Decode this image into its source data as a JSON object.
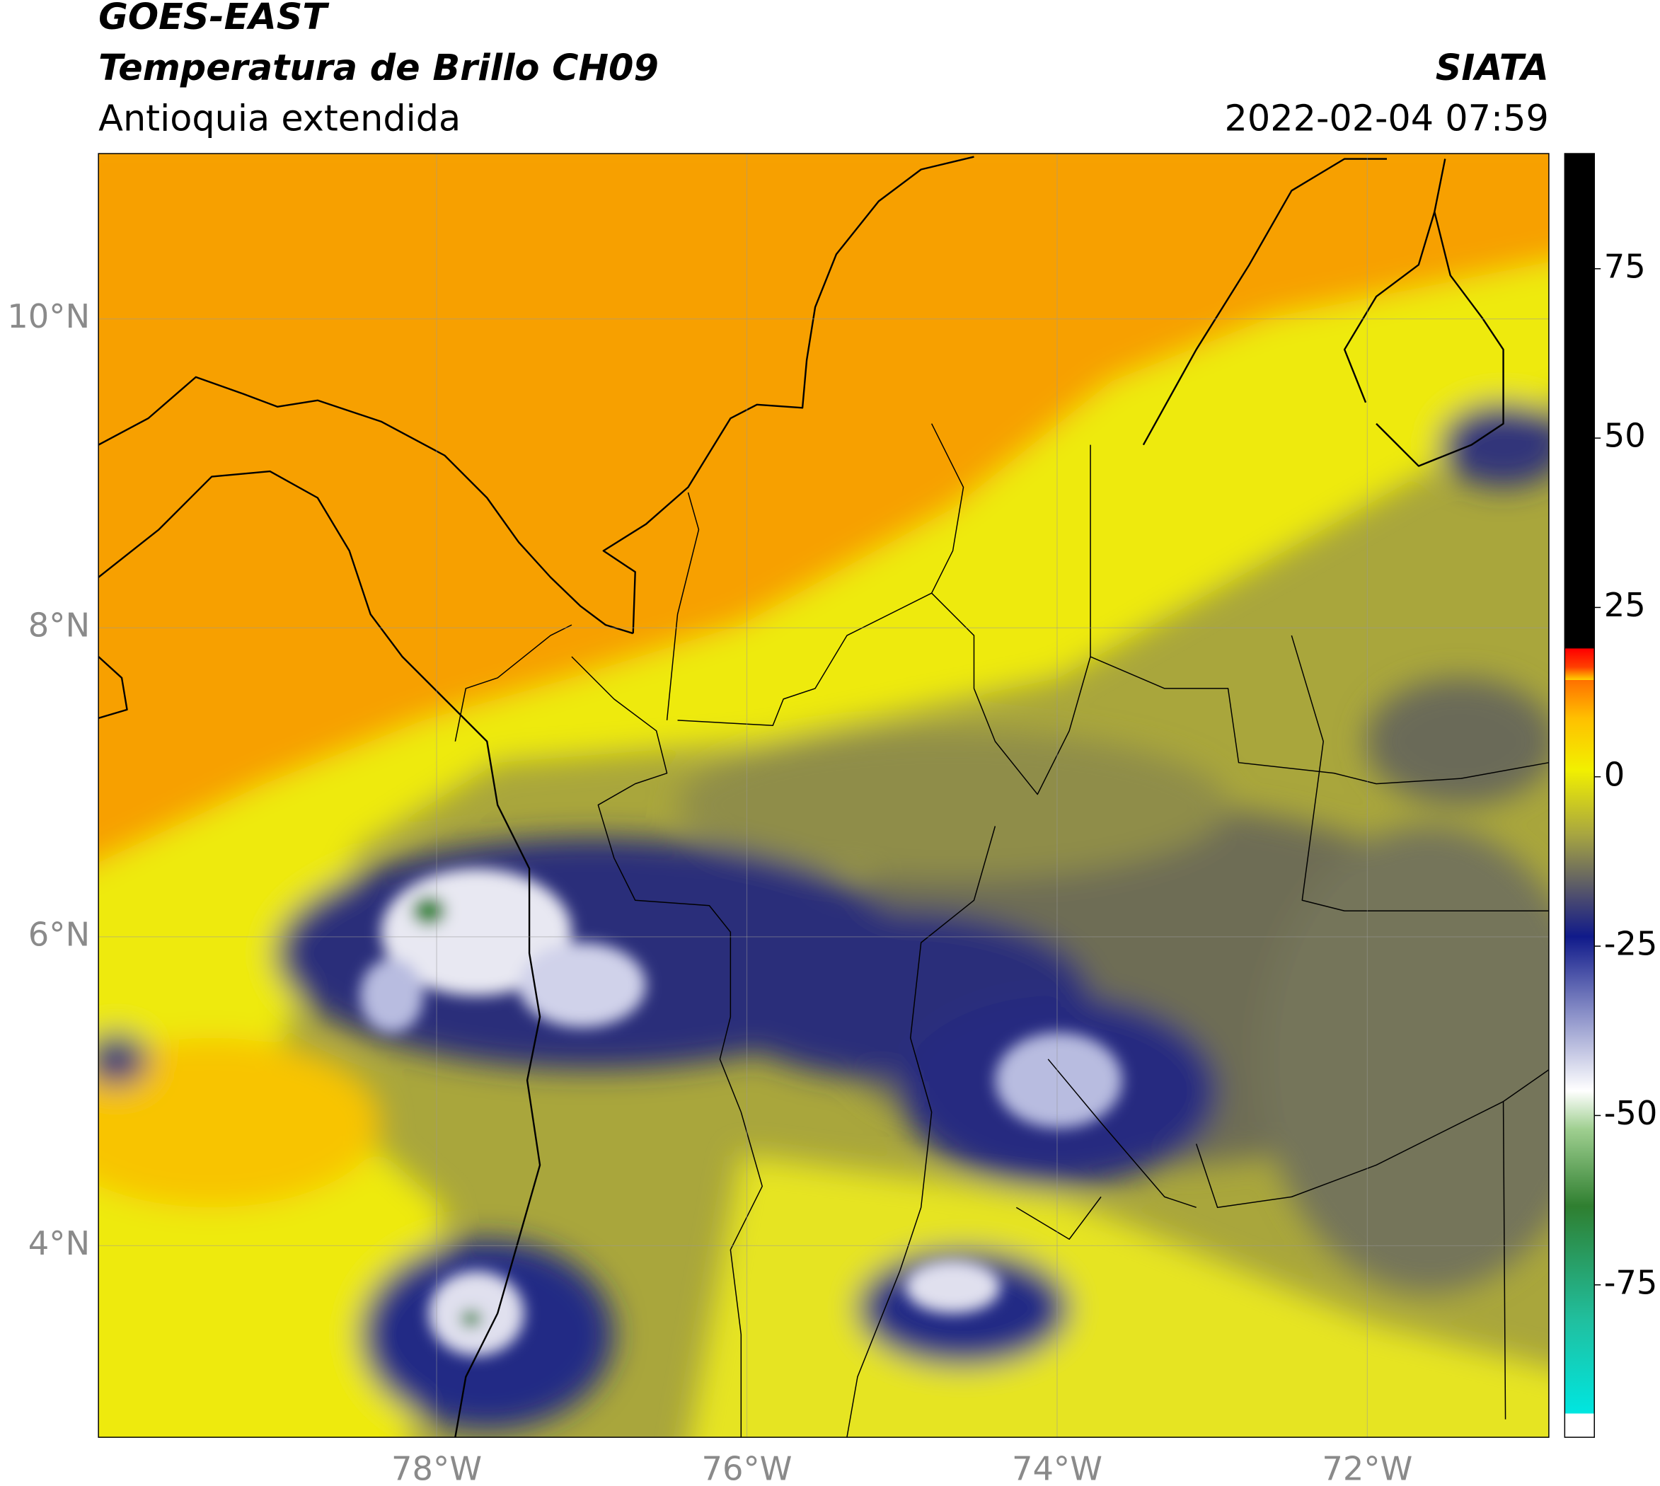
{
  "chart_data": {
    "type": "map",
    "title": "GOES-EAST",
    "subtitle": "Temperatura de Brillo CH09",
    "region": "Antioquia extendida",
    "source": "SIATA",
    "timestamp": "2022-02-04 07:59",
    "xlim": [
      -80.18,
      -70.83
    ],
    "ylim": [
      2.76,
      11.07
    ],
    "xticks": [
      {
        "value": -78,
        "label": "78°W"
      },
      {
        "value": -76,
        "label": "76°W"
      },
      {
        "value": -74,
        "label": "74°W"
      },
      {
        "value": -72,
        "label": "72°W"
      }
    ],
    "yticks": [
      {
        "value": 4,
        "label": "4°N"
      },
      {
        "value": 6,
        "label": "6°N"
      },
      {
        "value": 8,
        "label": "8°N"
      },
      {
        "value": 10,
        "label": "10°N"
      }
    ],
    "grid": true,
    "colorbar": {
      "lim": [
        -97.5,
        92
      ],
      "ticks": [
        -75,
        -50,
        -25,
        0,
        25,
        50,
        75
      ]
    }
  }
}
